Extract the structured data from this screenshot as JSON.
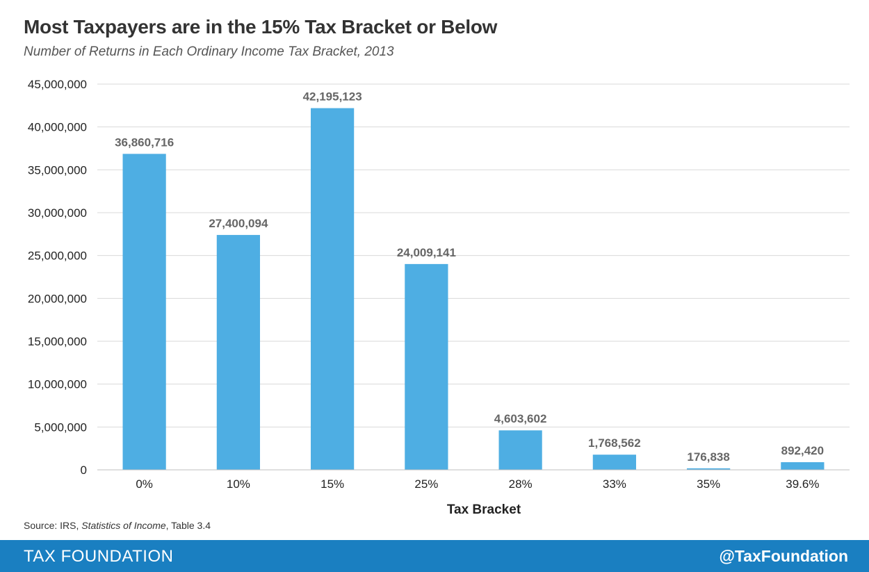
{
  "header": {
    "title": "Most Taxpayers are in the 15% Tax Bracket or Below",
    "subtitle": "Number of Returns in Each Ordinary  Income Tax Bracket, 2013"
  },
  "source": {
    "prefix": "Source: IRS, ",
    "italic": "Statistics of Income",
    "suffix": ", Table 3.4"
  },
  "footer": {
    "brand": "TAX FOUNDATION",
    "handle": "@TaxFoundation",
    "background_color": "#1a7fc1"
  },
  "chart_data": {
    "type": "bar",
    "title": "Most Taxpayers are in the 15% Tax Bracket or Below",
    "subtitle": "Number of Returns in Each Ordinary  Income Tax Bracket, 2013",
    "xlabel": "Tax Bracket",
    "ylabel": "",
    "categories": [
      "0%",
      "10%",
      "15%",
      "25%",
      "28%",
      "33%",
      "35%",
      "39.6%"
    ],
    "values": [
      36860716,
      27400094,
      42195123,
      24009141,
      4603602,
      1768562,
      176838,
      892420
    ],
    "data_labels": [
      "36,860,716",
      "27,400,094",
      "42,195,123",
      "24,009,141",
      "4,603,602",
      "1,768,562",
      "176,838",
      "892,420"
    ],
    "ylim": [
      0,
      45000000
    ],
    "yticks": [
      0,
      5000000,
      10000000,
      15000000,
      20000000,
      25000000,
      30000000,
      35000000,
      40000000,
      45000000
    ],
    "ytick_labels": [
      "0",
      "5,000,000",
      "10,000,000",
      "15,000,000",
      "20,000,000",
      "25,000,000",
      "30,000,000",
      "35,000,000",
      "40,000,000",
      "45,000,000"
    ],
    "grid": true,
    "bar_color": "#4eaee3",
    "grid_color": "#d9d9d9"
  }
}
